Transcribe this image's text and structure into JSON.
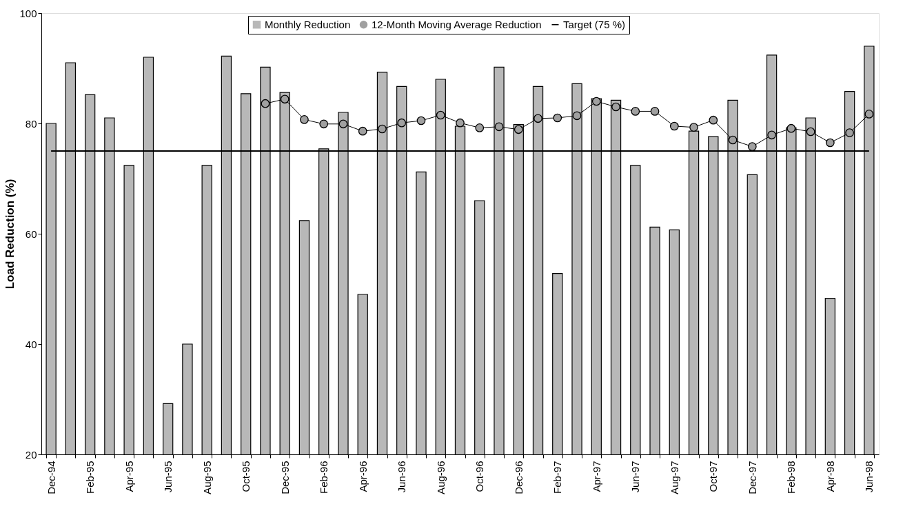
{
  "chart_data": {
    "type": "bar",
    "ylabel": "Load Reduction (%)",
    "categories": [
      "Dec-94",
      null,
      "Feb-95",
      null,
      "Apr-95",
      null,
      "Jun-95",
      null,
      "Aug-95",
      null,
      "Oct-95",
      null,
      "Dec-95",
      null,
      "Feb-96",
      null,
      "Apr-96",
      null,
      "Jun-96",
      null,
      "Aug-96",
      null,
      "Oct-96",
      null,
      "Dec-96",
      null,
      "Feb-97",
      null,
      "Apr-97",
      null,
      "Jun-97",
      null,
      "Aug-97",
      null,
      "Oct-97",
      null,
      "Dec-97",
      null,
      "Feb-98",
      null,
      "Apr-98",
      null,
      "Jun-98"
    ],
    "series": [
      {
        "name": "Monthly Reduction",
        "color": "#b8b8b8",
        "values": [
          80,
          91,
          85.2,
          81,
          72.4,
          92,
          29.2,
          40,
          72.4,
          92.2,
          85.4,
          90.2,
          85.6,
          62.4,
          75.4,
          82,
          49,
          89.3,
          86.7,
          71.2,
          88,
          79.5,
          66,
          90.2,
          79.8,
          86.7,
          52.8,
          87.2,
          84.5,
          84.2,
          72.4,
          61.2,
          60.7,
          78.6,
          77.6,
          84.2,
          70.7,
          92.4,
          79.2,
          81,
          48.3,
          85.8,
          94
        ]
      },
      {
        "name": "12-Month Moving Average Reduction",
        "type": "line",
        "marker": "circle",
        "color": "#a0a0a0",
        "values": [
          null,
          null,
          null,
          null,
          null,
          null,
          null,
          null,
          null,
          null,
          null,
          83.6,
          84.4,
          80.7,
          79.9,
          79.9,
          78.6,
          79,
          80.1,
          80.5,
          81.5,
          80.1,
          79.2,
          79.4,
          78.9,
          80.9,
          81,
          81.4,
          84,
          83,
          82.2,
          82.2,
          79.5,
          79.3,
          80.6,
          77,
          75.8,
          77.9,
          79.1,
          78.5,
          76.5,
          78.3,
          81.7
        ]
      },
      {
        "name": "Target (75 %)",
        "type": "line",
        "marker": "none",
        "color": "#000000",
        "values": [
          75,
          75,
          75,
          75,
          75,
          75,
          75,
          75,
          75,
          75,
          75,
          75,
          75,
          75,
          75,
          75,
          75,
          75,
          75,
          75,
          75,
          75,
          75,
          75,
          75,
          75,
          75,
          75,
          75,
          75,
          75,
          75,
          75,
          75,
          75,
          75,
          75,
          75,
          75,
          75,
          75,
          75,
          75
        ]
      }
    ],
    "ylim": [
      20,
      100
    ],
    "yticks": [
      20,
      40,
      60,
      80,
      100
    ],
    "grid": false,
    "legend": "top"
  }
}
